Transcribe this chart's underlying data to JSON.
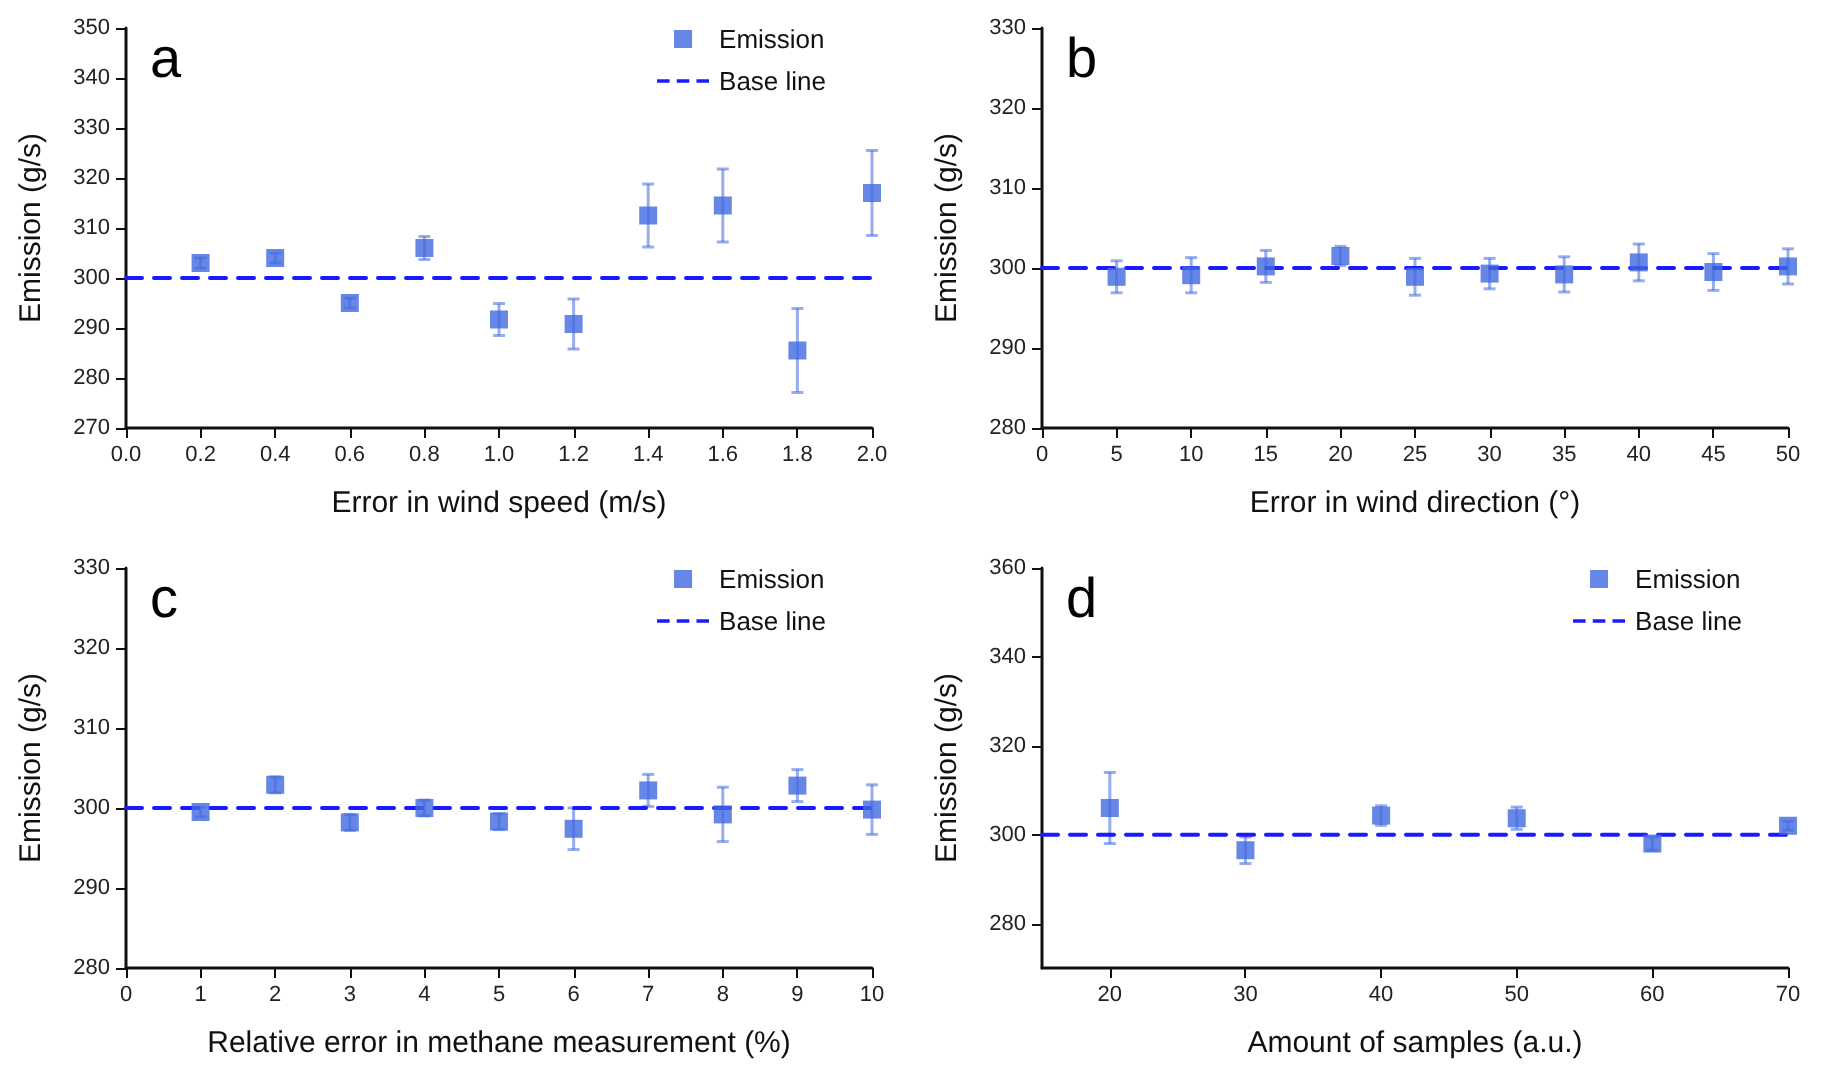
{
  "chart_data": [
    {
      "type": "scatter",
      "annotations": [
        "a"
      ],
      "xlabel": "Error in wind speed (m/s)",
      "ylabel": "Emission (g/s)",
      "x": [
        0.2,
        0.4,
        0.6,
        0.8,
        1.0,
        1.2,
        1.4,
        1.6,
        1.8,
        2.0
      ],
      "xlim": [
        0,
        2
      ],
      "xticks": [
        {
          "value": 0,
          "label": "0.0"
        },
        0.2,
        0.4,
        0.6,
        0.8,
        {
          "value": 1,
          "label": "1.0"
        },
        1.2,
        1.4,
        1.6,
        1.8,
        {
          "value": 2,
          "label": "2.0"
        }
      ],
      "ylim": [
        270,
        350
      ],
      "yticks": [
        270,
        280,
        290,
        300,
        310,
        320,
        330,
        340,
        350
      ],
      "grid": false,
      "legend": "top right",
      "series": [
        {
          "name": "Emission",
          "color": "#4169e1",
          "marker": "square",
          "values": [
            303,
            304,
            295,
            306,
            291.7,
            290.8,
            312.5,
            314.5,
            285.5,
            317
          ],
          "errors": [
            1,
            1,
            1,
            2.3,
            3.2,
            5,
            6.3,
            7.3,
            8.4,
            8.5
          ]
        },
        {
          "name": "Base line",
          "type": "line",
          "color": "#1a1aff",
          "marker": "none",
          "line_style": "dashed",
          "x": [
            0,
            2
          ],
          "values": [
            300,
            300
          ]
        }
      ]
    },
    {
      "type": "scatter",
      "annotations": [
        "b"
      ],
      "xlabel": "Error in wind direction (°)",
      "ylabel": "Emission (g/s)",
      "x": [
        5,
        10,
        15,
        20,
        25,
        30,
        35,
        40,
        45,
        50
      ],
      "xlim": [
        0,
        50
      ],
      "xticks": [
        0,
        5,
        10,
        15,
        20,
        25,
        30,
        35,
        40,
        45,
        50
      ],
      "ylim": [
        280,
        330
      ],
      "yticks": [
        280,
        290,
        300,
        310,
        320,
        330
      ],
      "grid": false,
      "legend": false,
      "series": [
        {
          "color": "#4169e1",
          "marker": "square",
          "values": [
            298.9,
            299.1,
            300.2,
            301.5,
            298.9,
            299.3,
            299.2,
            300.7,
            299.5,
            300.2
          ],
          "errors": [
            2,
            2.2,
            2,
            1.2,
            2.3,
            1.9,
            2.2,
            2.3,
            2.3,
            2.2
          ]
        },
        {
          "type": "line",
          "color": "#1a1aff",
          "marker": "none",
          "line_style": "dashed",
          "x": [
            0,
            50
          ],
          "values": [
            300,
            300
          ]
        }
      ]
    },
    {
      "type": "scatter",
      "annotations": [
        "c"
      ],
      "xlabel": "Relative error in methane measurement (%)",
      "ylabel": "Emission (g/s)",
      "x": [
        1,
        2,
        3,
        4,
        5,
        6,
        7,
        8,
        9,
        10
      ],
      "xlim": [
        0,
        10
      ],
      "xticks": [
        0,
        1,
        2,
        3,
        4,
        5,
        6,
        7,
        8,
        9,
        10
      ],
      "ylim": [
        280,
        330
      ],
      "yticks": [
        280,
        290,
        300,
        310,
        320,
        330
      ],
      "grid": false,
      "legend": "top right",
      "series": [
        {
          "name": "Emission",
          "color": "#4169e1",
          "marker": "square",
          "values": [
            299.5,
            302.9,
            298.2,
            300,
            298.3,
            297.4,
            302.2,
            299.2,
            302.8,
            299.8
          ],
          "errors": [
            0.6,
            1,
            1,
            1,
            1,
            2.6,
            2,
            3.4,
            2,
            3.1
          ]
        },
        {
          "name": "Base line",
          "type": "line",
          "color": "#1a1aff",
          "marker": "none",
          "line_style": "dashed",
          "x": [
            0,
            10
          ],
          "values": [
            300,
            300
          ]
        }
      ]
    },
    {
      "type": "scatter",
      "annotations": [
        "d"
      ],
      "xlabel": "Amount of samples (a.u.)",
      "ylabel": "Emission (g/s)",
      "x": [
        20,
        30,
        40,
        50,
        60,
        70
      ],
      "xlim": [
        15,
        70
      ],
      "xticks": [
        20,
        30,
        40,
        50,
        60,
        70
      ],
      "ylim": [
        270,
        360
      ],
      "yticks": [
        280,
        300,
        320,
        340,
        360
      ],
      "grid": false,
      "legend": "top right",
      "series": [
        {
          "name": "Emission",
          "color": "#4169e1",
          "marker": "square",
          "values": [
            306,
            296.5,
            304.3,
            303.7,
            298,
            302
          ],
          "errors": [
            8,
            3,
            2.2,
            2.5,
            1.5,
            1
          ]
        },
        {
          "name": "Base line",
          "type": "line",
          "color": "#1a1aff",
          "marker": "none",
          "line_style": "dashed",
          "x": [
            15,
            70
          ],
          "values": [
            300,
            300
          ]
        }
      ]
    }
  ]
}
